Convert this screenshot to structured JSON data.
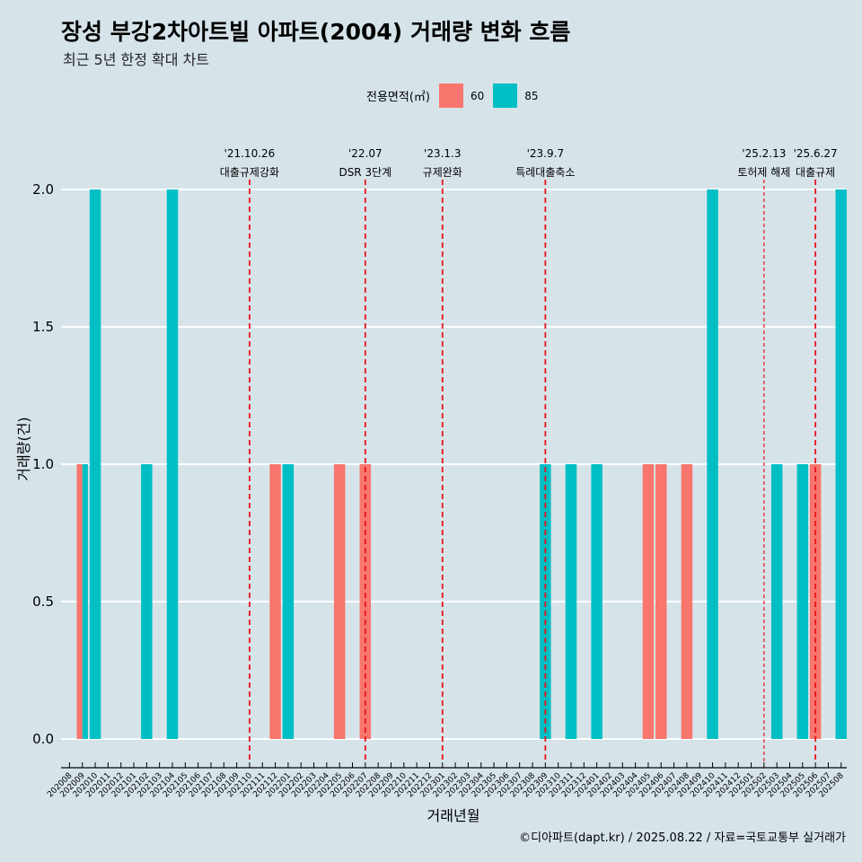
{
  "header": {
    "title": "장성 부강2차아트빌 아파트(2004) 거래량 변화 흐름",
    "subtitle": "최근 5년 한정 확대 차트"
  },
  "legend": {
    "title": "전용면적(㎡)",
    "items": [
      {
        "label": "60",
        "color": "#f8766d"
      },
      {
        "label": "85",
        "color": "#00bfc4"
      }
    ]
  },
  "caption": "©디아파트(dapt.kr) / 2025.08.22 / 자료=국토교통부 실거래가",
  "chart_data": {
    "type": "bar",
    "xlabel": "거래년월",
    "ylabel": "거래량(건)",
    "ylim": [
      0,
      2
    ],
    "yticks": [
      "0.0",
      "0.5",
      "1.0",
      "1.5",
      "2.0"
    ],
    "categories": [
      "202008",
      "202009",
      "202010",
      "202011",
      "202012",
      "202101",
      "202102",
      "202103",
      "202104",
      "202105",
      "202106",
      "202107",
      "202108",
      "202109",
      "202110",
      "202111",
      "202112",
      "202201",
      "202202",
      "202203",
      "202204",
      "202205",
      "202206",
      "202207",
      "202208",
      "202209",
      "202210",
      "202211",
      "202212",
      "202301",
      "202302",
      "202303",
      "202304",
      "202305",
      "202306",
      "202307",
      "202308",
      "202309",
      "202310",
      "202311",
      "202312",
      "202401",
      "202402",
      "202403",
      "202404",
      "202405",
      "202406",
      "202407",
      "202408",
      "202409",
      "202410",
      "202411",
      "202412",
      "202501",
      "202502",
      "202503",
      "202504",
      "202505",
      "202506",
      "202507",
      "202508"
    ],
    "series": [
      {
        "name": "60",
        "color": "#f8766d",
        "points": [
          {
            "x": "202009",
            "y": 1
          },
          {
            "x": "202112",
            "y": 1
          },
          {
            "x": "202205",
            "y": 1
          },
          {
            "x": "202207",
            "y": 1
          },
          {
            "x": "202405",
            "y": 1
          },
          {
            "x": "202406",
            "y": 1
          },
          {
            "x": "202408",
            "y": 1
          },
          {
            "x": "202506",
            "y": 1
          }
        ]
      },
      {
        "name": "85",
        "color": "#00bfc4",
        "points": [
          {
            "x": "202009",
            "y": 1
          },
          {
            "x": "202010",
            "y": 2
          },
          {
            "x": "202102",
            "y": 1
          },
          {
            "x": "202104",
            "y": 2
          },
          {
            "x": "202201",
            "y": 1
          },
          {
            "x": "202309",
            "y": 1
          },
          {
            "x": "202311",
            "y": 1
          },
          {
            "x": "202401",
            "y": 1
          },
          {
            "x": "202410",
            "y": 2
          },
          {
            "x": "202503",
            "y": 1
          },
          {
            "x": "202505",
            "y": 1
          },
          {
            "x": "202508",
            "y": 2
          }
        ]
      }
    ],
    "events": [
      {
        "date": "'21.10.26",
        "label": "대출규제강화",
        "x": "202110",
        "dashed": false
      },
      {
        "date": "'22.07",
        "label": "DSR 3단계",
        "x": "202207",
        "dashed": false
      },
      {
        "date": "'23.1.3",
        "label": "규제완화",
        "x": "202301",
        "dashed": false
      },
      {
        "date": "'23.9.7",
        "label": "특례대출축소",
        "x": "202309",
        "dashed": false
      },
      {
        "date": "'25.2.13",
        "label": "토허제 해제",
        "x": "202502",
        "dashed": true
      },
      {
        "date": "'25.6.27",
        "label": "대출규제",
        "x": "202506",
        "dashed": false
      }
    ],
    "grid": true,
    "legend_position": "top"
  }
}
